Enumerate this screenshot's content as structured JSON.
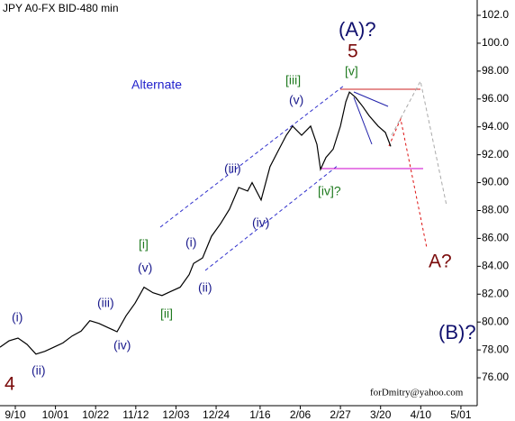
{
  "chart_data": {
    "type": "line",
    "title": "JPY A0-FX BID-480 min",
    "xlim": [
      -8,
      241.5
    ],
    "ylim": [
      74,
      103.1
    ],
    "xticks": [
      {
        "value": 0,
        "label": "9/10"
      },
      {
        "value": 21,
        "label": "10/01"
      },
      {
        "value": 42,
        "label": "10/22"
      },
      {
        "value": 63,
        "label": "11/12"
      },
      {
        "value": 84,
        "label": "12/03"
      },
      {
        "value": 105,
        "label": "12/24"
      },
      {
        "value": 128,
        "label": "1/16"
      },
      {
        "value": 149,
        "label": "2/06"
      },
      {
        "value": 170,
        "label": "2/27"
      },
      {
        "value": 191,
        "label": "3/20"
      },
      {
        "value": 212,
        "label": "4/10"
      },
      {
        "value": 233,
        "label": "5/01"
      }
    ],
    "yticks": [
      {
        "value": 102,
        "label": "102.0"
      },
      {
        "value": 100,
        "label": "100.0"
      },
      {
        "value": 98,
        "label": "98.00"
      },
      {
        "value": 96,
        "label": "96.00"
      },
      {
        "value": 94,
        "label": "94.00"
      },
      {
        "value": 92,
        "label": "92.00"
      },
      {
        "value": 90,
        "label": "90.00"
      },
      {
        "value": 88,
        "label": "88.00"
      },
      {
        "value": 86,
        "label": "86.00"
      },
      {
        "value": 84,
        "label": "84.00"
      },
      {
        "value": 82,
        "label": "82.00"
      },
      {
        "value": 80,
        "label": "80.00"
      },
      {
        "value": 78,
        "label": "78.00"
      },
      {
        "value": 76,
        "label": "76.00"
      }
    ],
    "x": [
      -8,
      -3.3,
      1.4,
      6.1,
      10.8,
      15.5,
      20.2,
      24.9,
      29.7,
      34.4,
      39,
      43.8,
      48.5,
      53.2,
      57.9,
      62.6,
      67.3,
      72,
      76.7,
      81.4,
      86.2,
      90.9,
      93.2,
      97.9,
      102.6,
      107.3,
      112,
      116.8,
      121.5,
      123.8,
      128.5,
      133.2,
      137.9,
      141.7,
      145,
      149.7,
      154.4,
      157.7,
      159.6,
      162.4,
      166.2,
      170,
      172.8,
      174.7,
      178,
      181.7,
      185,
      189.7,
      193.5,
      196.3
    ],
    "series": [
      {
        "name": "JPY A0-FX",
        "color": "#000000",
        "values": [
          78.2,
          78.65,
          78.85,
          78.4,
          77.7,
          77.9,
          78.2,
          78.5,
          79.0,
          79.35,
          80.1,
          79.9,
          79.6,
          79.3,
          80.45,
          81.35,
          82.5,
          82.1,
          81.9,
          82.2,
          82.5,
          83.4,
          84.2,
          84.6,
          86.15,
          87.05,
          88.1,
          89.65,
          89.4,
          90.0,
          88.75,
          91.15,
          92.4,
          93.4,
          94.05,
          93.4,
          94.05,
          92.75,
          90.95,
          91.8,
          92.4,
          94.05,
          95.8,
          96.5,
          96.1,
          95.45,
          94.8,
          94.05,
          93.6,
          92.6
        ]
      }
    ],
    "annotations": [
      "Alternate",
      "(A)?",
      "5",
      "[v]",
      "[iii]",
      "(v)",
      "(iii)",
      "(iv)",
      "[iv]?",
      "[i]",
      "(i)",
      "(v)",
      "(ii)",
      "[ii]",
      "(iii)",
      "(iv)",
      "(i)",
      "(ii)",
      "4",
      "A?",
      "(B)?",
      "forDmitry@yahoo.com"
    ]
  }
}
